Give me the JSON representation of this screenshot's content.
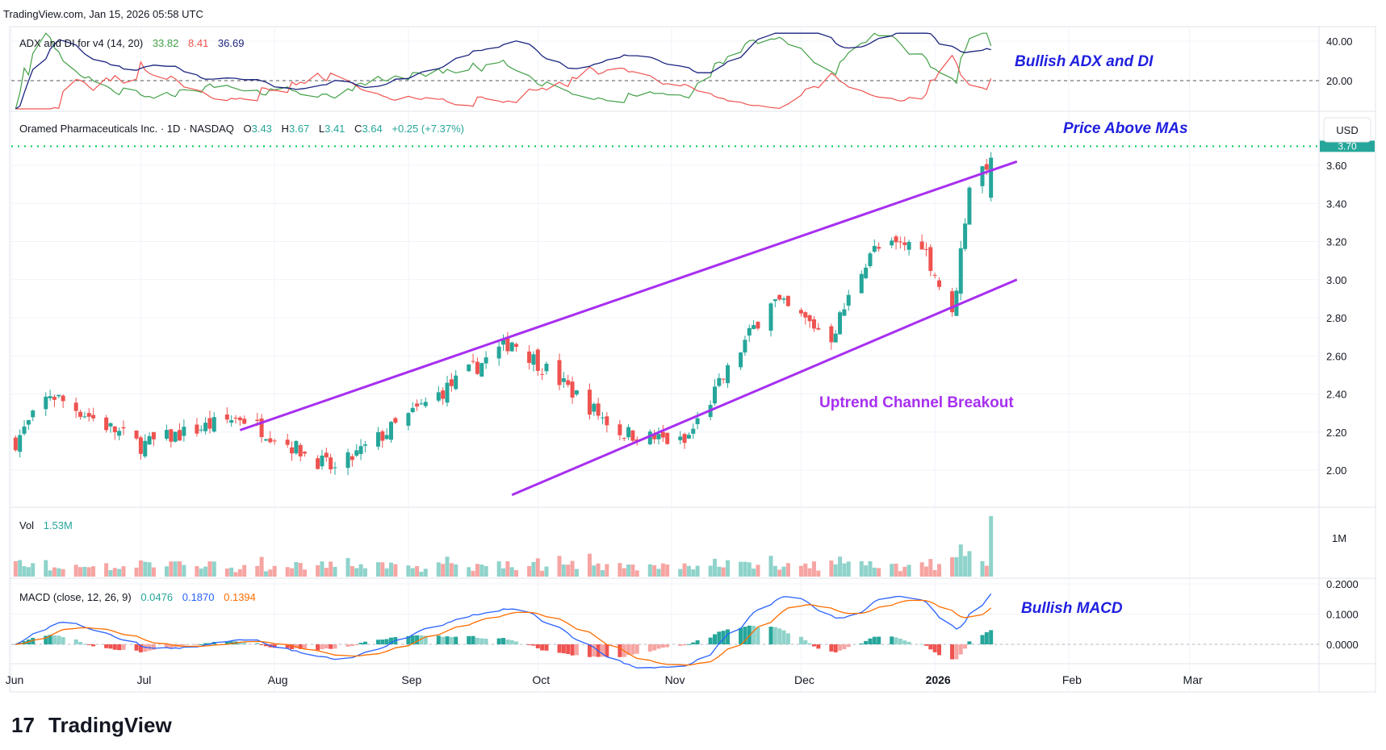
{
  "header": {
    "source_line": "TradingView.com, Jan 15, 2026 05:58 UTC"
  },
  "footer": {
    "brand_mark": "17",
    "brand_name": "TradingView"
  },
  "colors": {
    "up": "#26a69a",
    "down": "#ef5350",
    "vol_up": "#8fd3cb",
    "vol_down": "#f6a5a3",
    "channel": "#a72ff0",
    "adx": "#1a237e",
    "di_plus": "#43a047",
    "di_minus": "#ef5350",
    "macd_line": "#2962ff",
    "signal_line": "#ff6d00",
    "annotation_blue": "#1f1fe0",
    "price_level": "#00c853"
  },
  "adx_panel": {
    "title": "ADX and DI for v4 (14, 20)",
    "values": [
      "33.82",
      "8.41",
      "36.69"
    ],
    "axis_ticks": [
      "40.00",
      "20.00"
    ],
    "tick_values": [
      40,
      20
    ],
    "threshold": 20,
    "annotation": "Bullish ADX and DI"
  },
  "price_panel": {
    "symbol_line": "Oramed Pharmaceuticals Inc. · 1D · NASDAQ",
    "ohlc": [
      {
        "label": "O",
        "value": "3.43"
      },
      {
        "label": "H",
        "value": "3.67"
      },
      {
        "label": "L",
        "value": "3.41"
      },
      {
        "label": "C",
        "value": "3.64"
      }
    ],
    "change": "+0.25 (+7.37%)",
    "currency": "USD",
    "axis_ticks": [
      "3.60",
      "3.40",
      "3.20",
      "3.00",
      "2.80",
      "2.60",
      "2.40",
      "2.20",
      "2.00"
    ],
    "tick_values": [
      3.6,
      3.4,
      3.2,
      3.0,
      2.8,
      2.6,
      2.4,
      2.2,
      2.0
    ],
    "level_label": "3.70",
    "level_value": 3.7,
    "annotation_top": "Price Above MAs",
    "annotation_channel": "Uptrend Channel Breakout"
  },
  "volume_panel": {
    "title": "Vol",
    "value": "1.53M",
    "axis_tick": "1M"
  },
  "macd_panel": {
    "title": "MACD (close, 12, 26, 9)",
    "values": [
      "0.0476",
      "0.1870",
      "0.1394"
    ],
    "axis_ticks": [
      "0.2000",
      "0.1000",
      "0.0000"
    ],
    "tick_values": [
      0.2,
      0.1,
      0.0
    ],
    "annotation": "Bullish MACD"
  },
  "time_axis": {
    "labels": [
      {
        "text": "Jun",
        "bold": false
      },
      {
        "text": "Jul",
        "bold": false
      },
      {
        "text": "Aug",
        "bold": false
      },
      {
        "text": "Sep",
        "bold": false
      },
      {
        "text": "Oct",
        "bold": false
      },
      {
        "text": "Nov",
        "bold": false
      },
      {
        "text": "Dec",
        "bold": false
      },
      {
        "text": "2026",
        "bold": true
      },
      {
        "text": "Feb",
        "bold": false
      },
      {
        "text": "Mar",
        "bold": false
      }
    ]
  },
  "chart_data": {
    "type": "candlestick",
    "ticker": "NASDAQ",
    "interval": "1D",
    "price_ylim": [
      1.87,
      3.77
    ],
    "key_points": [
      {
        "date": "2025-06-02",
        "close": 2.15
      },
      {
        "date": "2025-06-10",
        "close": 2.4
      },
      {
        "date": "2025-07-01",
        "close": 2.13
      },
      {
        "date": "2025-07-24",
        "close": 2.28
      },
      {
        "date": "2025-08-15",
        "close": 2.0
      },
      {
        "date": "2025-09-25",
        "close": 2.68
      },
      {
        "date": "2025-10-20",
        "close": 2.2
      },
      {
        "date": "2025-11-04",
        "close": 2.14
      },
      {
        "date": "2025-11-24",
        "close": 2.9
      },
      {
        "date": "2025-12-08",
        "close": 2.7
      },
      {
        "date": "2025-12-17",
        "close": 3.15
      },
      {
        "date": "2025-12-29",
        "close": 3.2
      },
      {
        "date": "2026-01-05",
        "close": 2.8
      },
      {
        "date": "2026-01-09",
        "close": 3.5
      },
      {
        "date": "2026-01-14",
        "close": 3.64
      }
    ],
    "last_bar": {
      "open": 3.43,
      "high": 3.67,
      "low": 3.41,
      "close": 3.64,
      "change": 0.25,
      "change_pct": 7.37,
      "volume": 1530000
    },
    "adx_last": {
      "di_plus": 33.82,
      "di_minus": 8.41,
      "adx": 36.69
    },
    "macd_last": {
      "histogram": 0.0476,
      "macd": 0.187,
      "signal": 0.1394
    },
    "channel": {
      "upper": [
        {
          "date": "2025-07-24",
          "price": 2.21
        },
        {
          "date": "2026-01-20",
          "price": 3.62
        }
      ],
      "lower": [
        {
          "date": "2025-09-25",
          "price": 1.87
        },
        {
          "date": "2026-01-20",
          "price": 3.0
        }
      ]
    }
  }
}
